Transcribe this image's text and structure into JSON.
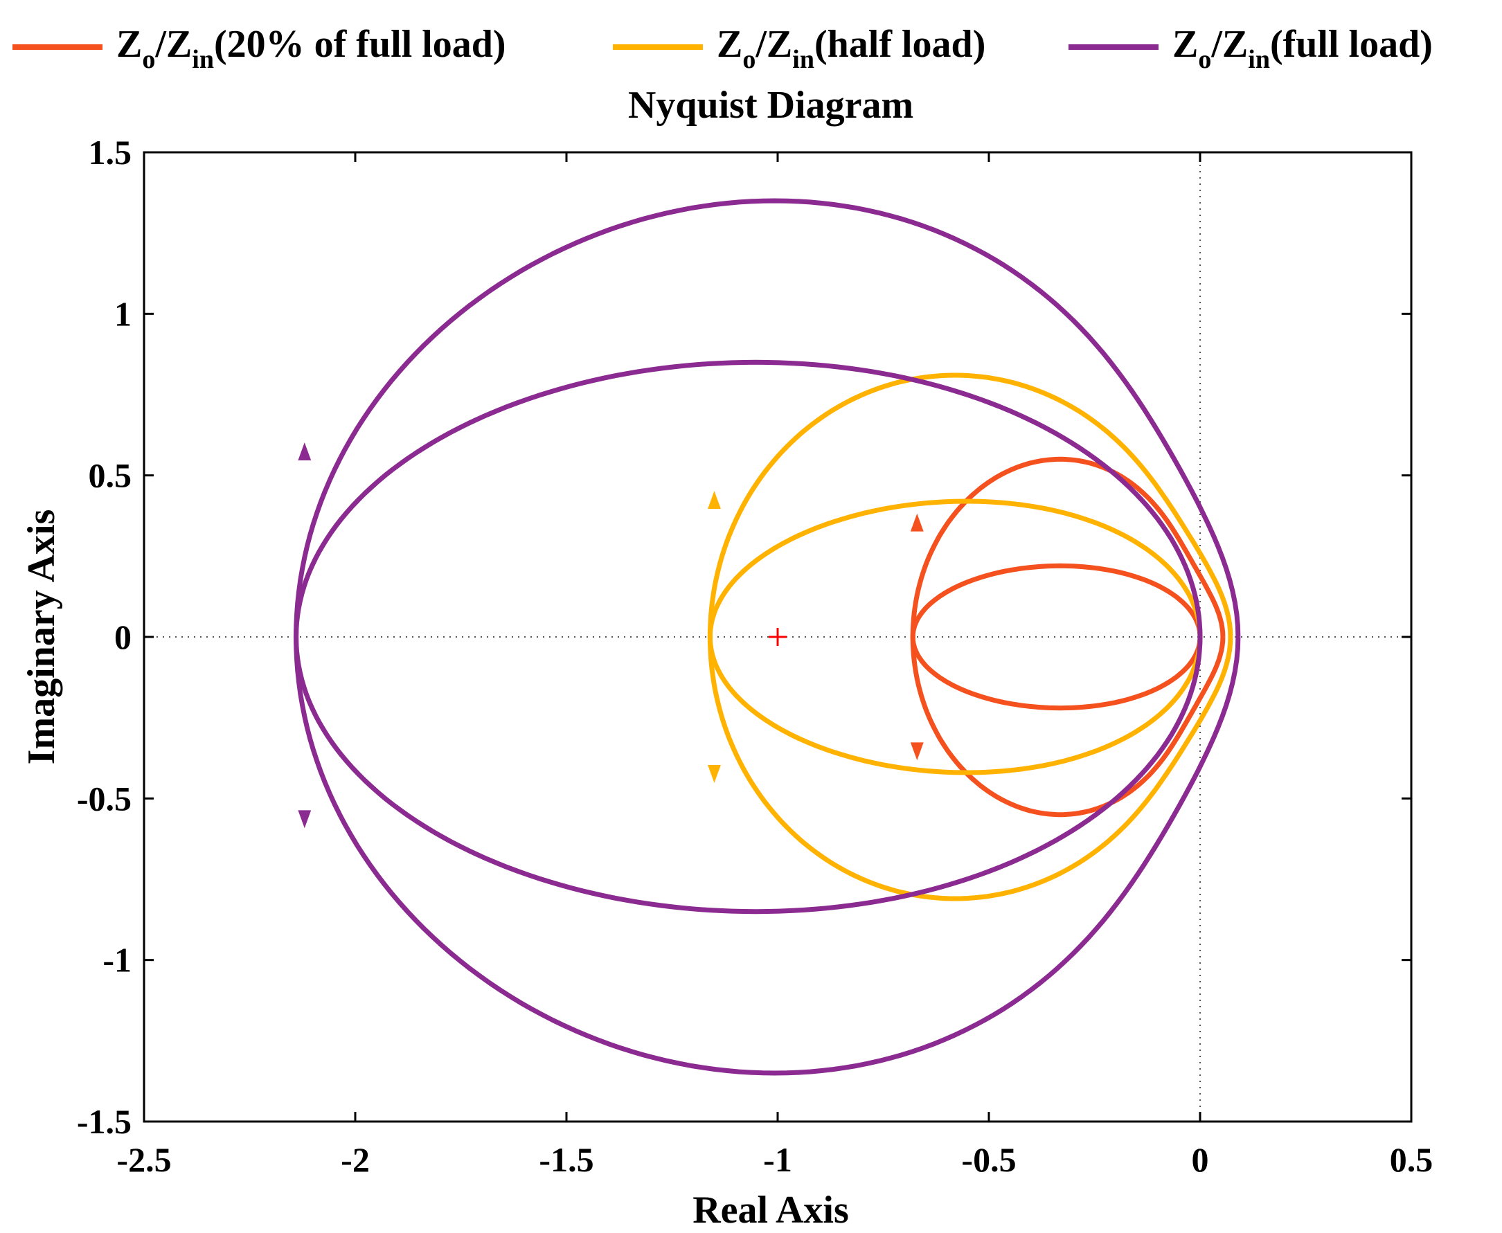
{
  "chart_data": {
    "type": "line",
    "title": "Nyquist Diagram",
    "xlabel": "Real Axis",
    "ylabel": "Imaginary Axis",
    "xlim": [
      -2.5,
      0.5
    ],
    "ylim": [
      -1.5,
      1.5
    ],
    "xticks": [
      "-2.5",
      "-2",
      "-1.5",
      "-1",
      "-0.5",
      "0",
      "0.5"
    ],
    "yticks": [
      "1.5",
      "1",
      "0.5",
      "0",
      "-0.5",
      "-1",
      "-1.5"
    ],
    "grid": false,
    "legend_position": "top",
    "critical_point": {
      "x": -1,
      "y": 0,
      "color": "#ff0000"
    },
    "series": [
      {
        "name": "Zo/Zin(20% of full load)",
        "legend": {
          "main": "Z",
          "sub1": "o",
          "sep": "/Z",
          "sub2": "in",
          "rest": "(20% of full load)"
        },
        "color": "#f4511e",
        "loops": [
          {
            "left": -0.68,
            "right": 0.0,
            "top": 0.55,
            "peak_x": -0.33,
            "kink": 0.03
          },
          {
            "left": -0.68,
            "right": 0.0,
            "top": 0.22,
            "peak_x": -0.33,
            "kink": 0.0
          }
        ],
        "arrows": [
          {
            "x": -0.67,
            "y": 0.35
          },
          {
            "x": -0.67,
            "y": -0.35
          }
        ]
      },
      {
        "name": "Zo/Zin(half load)",
        "legend": {
          "main": "Z",
          "sub1": "o",
          "sep": "/Z",
          "sub2": "in",
          "rest": "(half load)"
        },
        "color": "#ffb300",
        "loops": [
          {
            "left": -1.16,
            "right": 0.0,
            "top": 0.81,
            "peak_x": -0.58,
            "kink": 0.04
          },
          {
            "left": -1.16,
            "right": 0.0,
            "top": 0.42,
            "peak_x": -0.55,
            "kink": 0.0
          }
        ],
        "arrows": [
          {
            "x": -1.15,
            "y": 0.42
          },
          {
            "x": -1.15,
            "y": -0.42
          }
        ]
      },
      {
        "name": "Zo/Zin(full load)",
        "legend": {
          "main": "Z",
          "sub1": "o",
          "sep": "/Z",
          "sub2": "in",
          "rest": "(full load)"
        },
        "color": "#8b2a90",
        "loops": [
          {
            "left": -2.14,
            "right": 0.0,
            "top": 1.35,
            "peak_x": -1.0,
            "kink": 0.05
          },
          {
            "left": -2.14,
            "right": 0.0,
            "top": 0.85,
            "peak_x": -1.05,
            "kink": 0.0
          }
        ],
        "arrows": [
          {
            "x": -2.12,
            "y": 0.57
          },
          {
            "x": -2.12,
            "y": -0.56
          }
        ]
      }
    ]
  }
}
